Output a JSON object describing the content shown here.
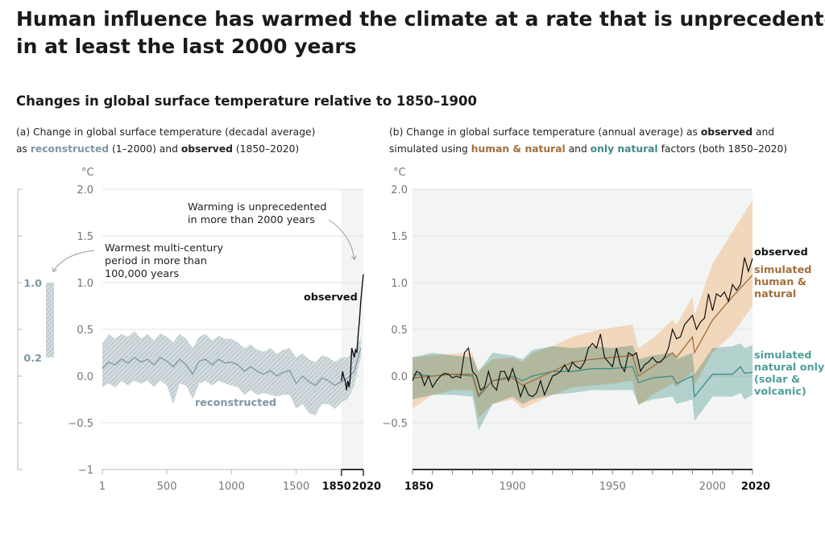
{
  "title_line1": "Human influence has warmed the climate at a rate that is unprecedented",
  "title_line2": "in at least the last 2000 years",
  "subtitle": "Changes in global surface temperature relative to 1850–1900",
  "colors": {
    "reconstructed": "#7f98a3",
    "reconstructed_band": "#c3ced2",
    "observed": "#111111",
    "human_natural": "#a36f3a",
    "human_natural_band": "#f0cfae",
    "natural_only": "#3f8c86",
    "natural_only_band": "#8fc1bc",
    "highlight_bg": "#f3f5f4"
  },
  "chart_data": [
    {
      "type": "line",
      "caption": {
        "line1": "(a) Change in global surface temperature (decadal average)",
        "line2_pre": "as ",
        "line2_recon": "reconstructed",
        "line2_mid": " (1–2000) and ",
        "line2_obs": "observed",
        "line2_post": " (1850–2020)"
      },
      "ylabel": "°C",
      "ylim": [
        -1,
        2
      ],
      "xlim": [
        1,
        2020
      ],
      "y_ticks": [
        "2.0",
        "1.5",
        "1.0",
        "0.5",
        "0.0",
        "−0.5",
        "−1"
      ],
      "y_tick_values": [
        2,
        1.5,
        1,
        0.5,
        0,
        -0.5,
        -1
      ],
      "x_ticks": [
        "1",
        "500",
        "1000",
        "1500"
      ],
      "x_tick_values": [
        1,
        500,
        1000,
        1500
      ],
      "x_ticks_bold": [
        "1850",
        "2020"
      ],
      "x_ticks_bold_values": [
        1850,
        2020
      ],
      "grid": true,
      "highlight_period": [
        1850,
        2020
      ],
      "side_range": {
        "low": 0.2,
        "high": 1.0,
        "low_label": "0.2",
        "high_label": "1.0"
      },
      "annotations": {
        "unprecedented_1": "Warming is unprecedented",
        "unprecedented_2": "in more than 2000 years",
        "warmest_1": "Warmest multi-century",
        "warmest_2": "period in more than",
        "warmest_3": "100,000 years"
      },
      "series": [
        {
          "name": "reconstructed",
          "x": [
            1,
            50,
            100,
            150,
            200,
            250,
            300,
            350,
            400,
            450,
            500,
            550,
            600,
            650,
            700,
            750,
            800,
            850,
            900,
            950,
            1000,
            1050,
            1100,
            1150,
            1200,
            1250,
            1300,
            1350,
            1400,
            1450,
            1500,
            1550,
            1600,
            1650,
            1700,
            1750,
            1800,
            1850,
            1900,
            1950,
            2000
          ],
          "values": [
            0.08,
            0.15,
            0.12,
            0.18,
            0.14,
            0.2,
            0.15,
            0.18,
            0.12,
            0.2,
            0.16,
            0.1,
            0.18,
            0.12,
            0.02,
            0.16,
            0.18,
            0.12,
            0.18,
            0.14,
            0.15,
            0.12,
            0.05,
            0.1,
            0.05,
            0.02,
            0.06,
            0.0,
            0.04,
            0.06,
            -0.08,
            0.0,
            -0.06,
            -0.1,
            -0.02,
            -0.05,
            -0.1,
            -0.06,
            -0.02,
            0.05,
            0.3
          ],
          "low": [
            -0.12,
            -0.08,
            -0.12,
            -0.05,
            -0.1,
            -0.05,
            -0.08,
            -0.05,
            -0.12,
            -0.05,
            -0.1,
            -0.3,
            -0.08,
            -0.1,
            -0.25,
            -0.08,
            -0.05,
            -0.1,
            -0.05,
            -0.08,
            -0.1,
            -0.12,
            -0.2,
            -0.15,
            -0.2,
            -0.18,
            -0.2,
            -0.22,
            -0.2,
            -0.2,
            -0.35,
            -0.3,
            -0.4,
            -0.42,
            -0.3,
            -0.3,
            -0.35,
            -0.28,
            -0.25,
            -0.1,
            0.2
          ],
          "high": [
            0.35,
            0.45,
            0.4,
            0.45,
            0.42,
            0.48,
            0.4,
            0.45,
            0.38,
            0.46,
            0.42,
            0.36,
            0.45,
            0.4,
            0.3,
            0.42,
            0.45,
            0.38,
            0.43,
            0.4,
            0.4,
            0.36,
            0.3,
            0.34,
            0.28,
            0.26,
            0.3,
            0.24,
            0.28,
            0.3,
            0.2,
            0.24,
            0.18,
            0.15,
            0.22,
            0.2,
            0.15,
            0.2,
            0.2,
            0.28,
            0.42
          ]
        },
        {
          "name": "observed",
          "x": [
            1850,
            1860,
            1870,
            1880,
            1890,
            1900,
            1910,
            1920,
            1930,
            1940,
            1950,
            1960,
            1970,
            1980,
            1990,
            2000,
            2010,
            2020
          ],
          "values": [
            -0.05,
            0.05,
            -0.02,
            -0.05,
            -0.15,
            -0.05,
            -0.12,
            0.0,
            0.3,
            0.25,
            0.2,
            0.28,
            0.25,
            0.45,
            0.6,
            0.8,
            0.95,
            1.09
          ]
        }
      ]
    },
    {
      "type": "line",
      "caption": {
        "line1_pre": "(b) Change in global surface temperature (annual average) as ",
        "line1_obs": "observed",
        "line1_post": " and",
        "line2_pre": "simulated using ",
        "line2_hn": "human & natural",
        "line2_mid": " and ",
        "line2_nat": "only natural",
        "line2_post": " factors (both 1850–2020)"
      },
      "ylabel": "°C",
      "ylim": [
        -1,
        2
      ],
      "xlim": [
        1850,
        2020
      ],
      "y_ticks": [
        "2.0",
        "1.5",
        "1.0",
        "0.5",
        "0.0",
        "−0.5"
      ],
      "y_tick_values": [
        2,
        1.5,
        1,
        0.5,
        0,
        -0.5
      ],
      "x_ticks": [
        "1900",
        "1950",
        "2000"
      ],
      "x_tick_values": [
        1900,
        1950,
        2000
      ],
      "x_ticks_bold": [
        "1850",
        "2020"
      ],
      "x_ticks_bold_values": [
        1850,
        2020
      ],
      "grid": true,
      "legend_placement": "right (inline labels)",
      "labels": {
        "observed": "observed",
        "hn_1": "simulated",
        "hn_2": "human &",
        "hn_3": "natural",
        "nat_1": "simulated",
        "nat_2": "natural only",
        "nat_3": "(solar &",
        "nat_4": "volcanic)"
      },
      "series": [
        {
          "name": "observed",
          "x": [
            1850,
            1852,
            1854,
            1856,
            1858,
            1860,
            1862,
            1864,
            1866,
            1868,
            1870,
            1872,
            1874,
            1876,
            1878,
            1880,
            1882,
            1884,
            1886,
            1888,
            1890,
            1892,
            1894,
            1896,
            1898,
            1900,
            1902,
            1904,
            1906,
            1908,
            1910,
            1912,
            1914,
            1916,
            1918,
            1920,
            1922,
            1924,
            1926,
            1928,
            1930,
            1932,
            1934,
            1936,
            1938,
            1940,
            1942,
            1944,
            1946,
            1948,
            1950,
            1952,
            1954,
            1956,
            1958,
            1960,
            1962,
            1964,
            1966,
            1968,
            1970,
            1972,
            1974,
            1976,
            1978,
            1980,
            1982,
            1984,
            1986,
            1988,
            1990,
            1992,
            1994,
            1996,
            1998,
            2000,
            2002,
            2004,
            2006,
            2008,
            2010,
            2012,
            2014,
            2016,
            2018,
            2020
          ],
          "values": [
            -0.05,
            0.05,
            0.03,
            -0.1,
            0.0,
            -0.12,
            -0.05,
            0.0,
            0.03,
            0.02,
            -0.02,
            0.0,
            -0.02,
            0.25,
            0.3,
            0.05,
            0.0,
            -0.15,
            -0.12,
            0.05,
            -0.1,
            -0.15,
            0.05,
            0.05,
            -0.05,
            0.08,
            -0.05,
            -0.22,
            -0.1,
            -0.2,
            -0.22,
            -0.18,
            -0.05,
            -0.2,
            -0.1,
            0.0,
            0.02,
            0.05,
            0.12,
            0.05,
            0.15,
            0.1,
            0.08,
            0.15,
            0.3,
            0.35,
            0.3,
            0.45,
            0.2,
            0.15,
            0.1,
            0.3,
            0.12,
            0.05,
            0.25,
            0.22,
            0.25,
            0.05,
            0.12,
            0.15,
            0.2,
            0.15,
            0.15,
            0.2,
            0.3,
            0.5,
            0.4,
            0.42,
            0.55,
            0.6,
            0.65,
            0.5,
            0.58,
            0.62,
            0.88,
            0.7,
            0.88,
            0.85,
            0.9,
            0.8,
            0.98,
            0.92,
            0.98,
            1.27,
            1.12,
            1.26
          ]
        },
        {
          "name": "simulated human & natural",
          "x": [
            1850,
            1860,
            1870,
            1880,
            1883,
            1890,
            1900,
            1905,
            1910,
            1920,
            1930,
            1940,
            1950,
            1960,
            1963,
            1970,
            1980,
            1982,
            1990,
            1991,
            2000,
            2010,
            2020
          ],
          "values": [
            -0.02,
            0.0,
            0.02,
            0.02,
            -0.2,
            -0.05,
            -0.02,
            -0.1,
            -0.05,
            0.05,
            0.15,
            0.18,
            0.2,
            0.22,
            0.0,
            0.1,
            0.25,
            0.2,
            0.42,
            0.25,
            0.6,
            0.85,
            1.08
          ],
          "low": [
            -0.35,
            -0.2,
            -0.15,
            -0.15,
            -0.45,
            -0.3,
            -0.25,
            -0.35,
            -0.3,
            -0.2,
            -0.12,
            -0.1,
            -0.08,
            -0.05,
            -0.32,
            -0.2,
            -0.08,
            -0.12,
            0.05,
            -0.1,
            0.25,
            0.45,
            0.75
          ],
          "high": [
            0.2,
            0.22,
            0.24,
            0.25,
            0.05,
            0.18,
            0.2,
            0.15,
            0.25,
            0.32,
            0.42,
            0.48,
            0.52,
            0.55,
            0.3,
            0.4,
            0.6,
            0.55,
            0.85,
            0.65,
            1.2,
            1.55,
            1.88
          ]
        },
        {
          "name": "simulated natural only (solar & volcanic)",
          "x": [
            1850,
            1860,
            1870,
            1880,
            1883,
            1890,
            1900,
            1905,
            1910,
            1920,
            1930,
            1940,
            1950,
            1960,
            1963,
            1970,
            1980,
            1982,
            1990,
            1991,
            2000,
            2010,
            2014,
            2016,
            2020
          ],
          "values": [
            0.02,
            0.0,
            0.02,
            0.0,
            -0.22,
            -0.05,
            0.0,
            -0.05,
            0.0,
            0.05,
            0.05,
            0.08,
            0.08,
            0.1,
            -0.07,
            -0.02,
            0.0,
            -0.08,
            0.0,
            -0.22,
            0.02,
            0.02,
            0.1,
            0.03,
            0.04
          ],
          "low": [
            -0.25,
            -0.2,
            -0.2,
            -0.22,
            -0.58,
            -0.3,
            -0.22,
            -0.3,
            -0.25,
            -0.2,
            -0.18,
            -0.15,
            -0.15,
            -0.15,
            -0.3,
            -0.25,
            -0.22,
            -0.3,
            -0.25,
            -0.48,
            -0.22,
            -0.22,
            -0.18,
            -0.25,
            -0.2
          ],
          "high": [
            0.2,
            0.25,
            0.22,
            0.2,
            0.05,
            0.25,
            0.22,
            0.18,
            0.28,
            0.32,
            0.3,
            0.32,
            0.3,
            0.33,
            0.18,
            0.22,
            0.25,
            0.18,
            0.25,
            0.02,
            0.3,
            0.32,
            0.35,
            0.3,
            0.33
          ]
        }
      ]
    }
  ]
}
